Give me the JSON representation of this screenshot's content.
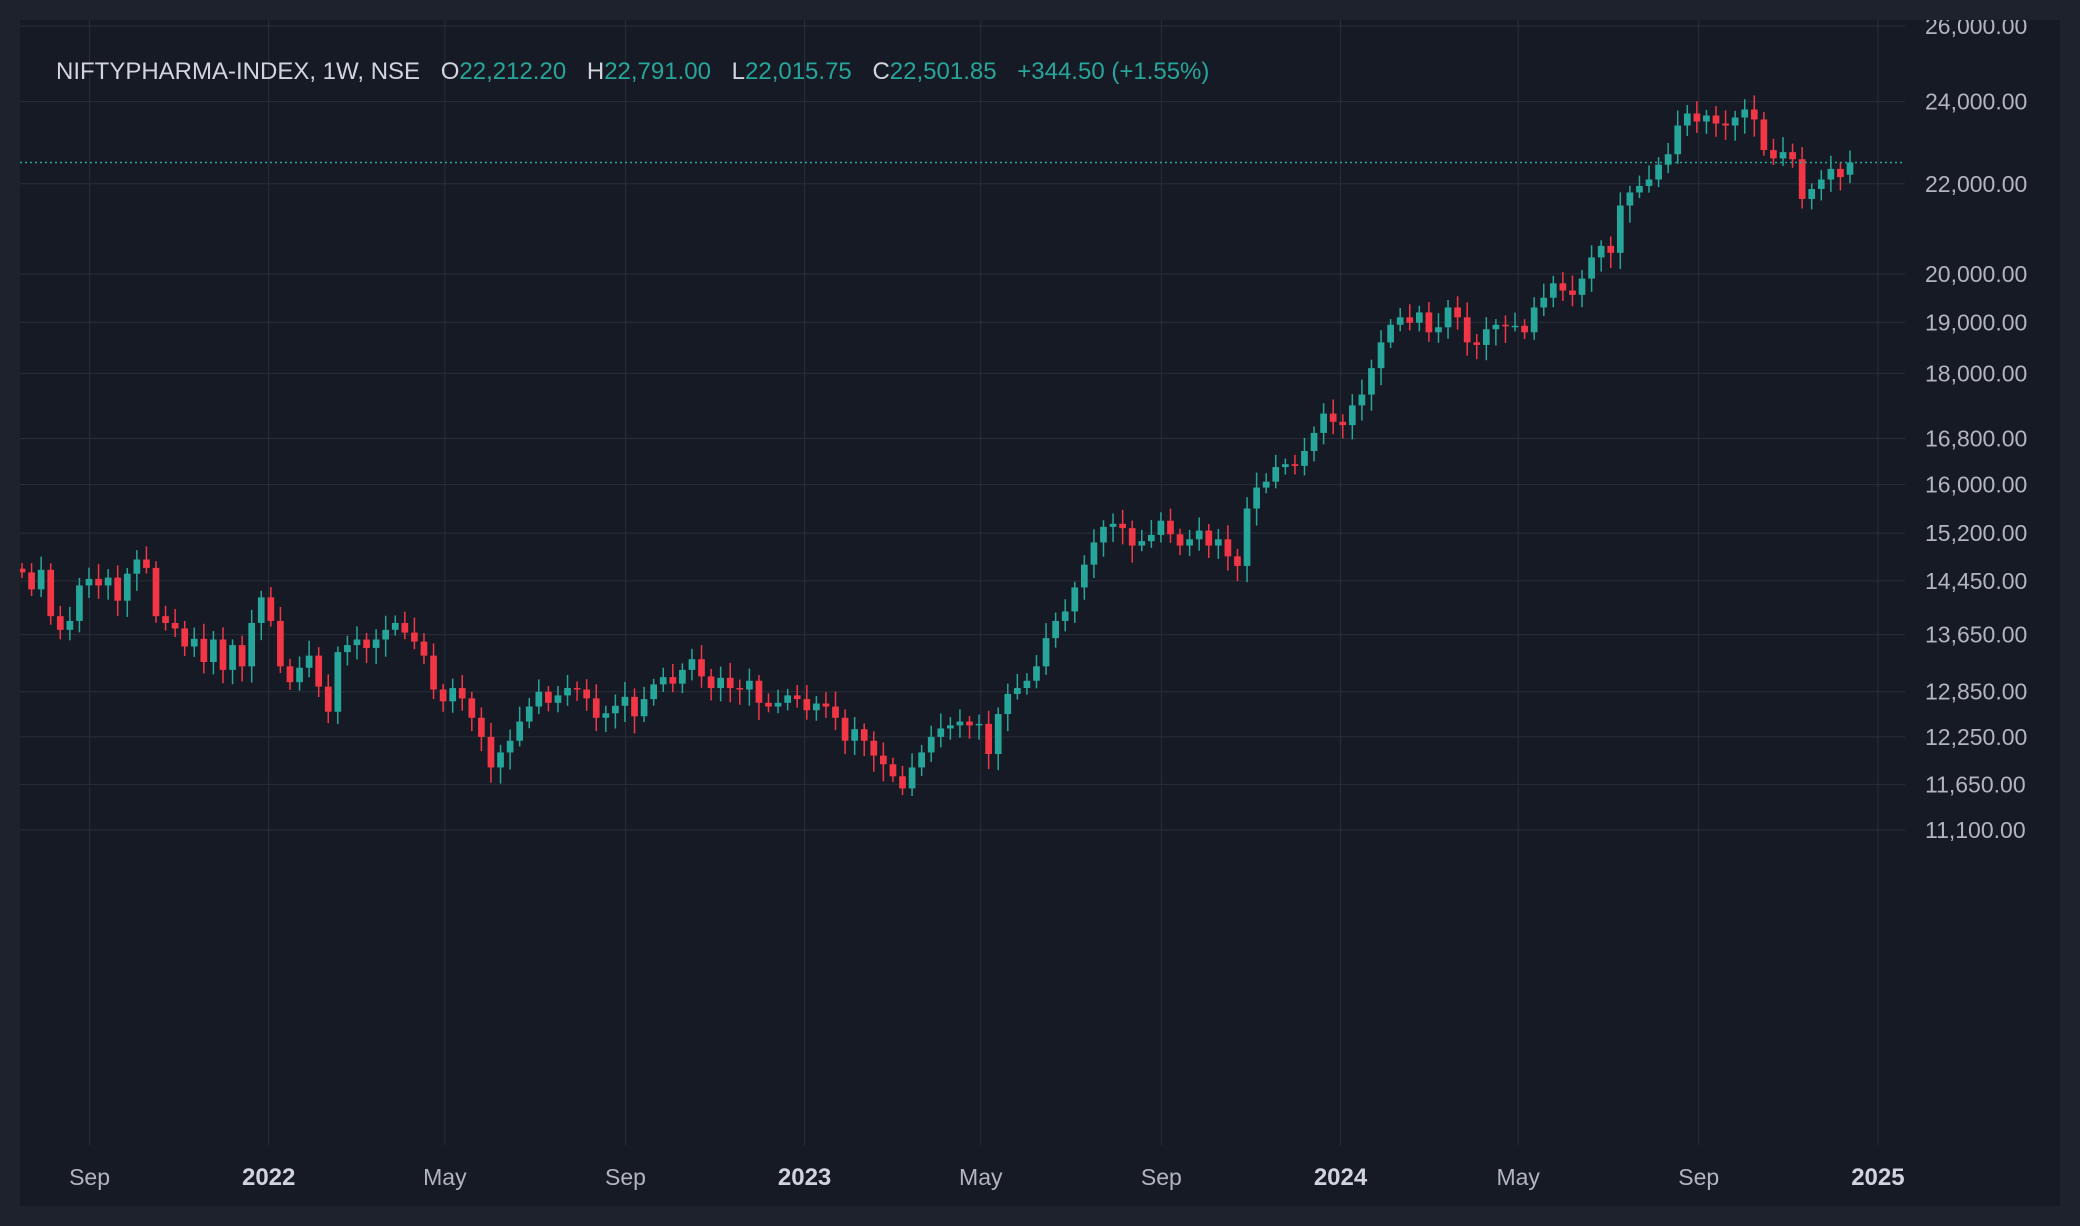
{
  "legend": {
    "symbol": "NIFTYPHARMA-INDEX, 1W, NSE",
    "open_label": "O",
    "open": "22,212.20",
    "high_label": "H",
    "high": "22,791.00",
    "low_label": "L",
    "low": "22,015.75",
    "close_label": "C",
    "close": "22,501.85",
    "change": "+344.50 (+1.55%)"
  },
  "colors": {
    "up": "#26a69a",
    "down": "#f23645",
    "background": "#161a25",
    "frame": "#1e222d",
    "grid": "#2a2e39",
    "text": "#b2b5be"
  },
  "chart_data": {
    "type": "candlestick",
    "timeframe": "1W",
    "yscale": "log",
    "ylim": [
      10700,
      26000
    ],
    "y_ticks": [
      "26,000.00",
      "24,000.00",
      "22,000.00",
      "20,000.00",
      "19,000.00",
      "18,000.00",
      "16,800.00",
      "16,000.00",
      "15,200.00",
      "14,450.00",
      "13,650.00",
      "12,850.00",
      "12,250.00",
      "11,650.00",
      "11,100.00"
    ],
    "x_ticks": [
      {
        "label": "Sep",
        "date": "2021-09-01",
        "bold": false
      },
      {
        "label": "2022",
        "date": "2022-01-01",
        "bold": true
      },
      {
        "label": "May",
        "date": "2022-05-01",
        "bold": false
      },
      {
        "label": "Sep",
        "date": "2022-09-01",
        "bold": false
      },
      {
        "label": "2023",
        "date": "2023-01-01",
        "bold": true
      },
      {
        "label": "May",
        "date": "2023-05-01",
        "bold": false
      },
      {
        "label": "Sep",
        "date": "2023-09-01",
        "bold": false
      },
      {
        "label": "2024",
        "date": "2024-01-01",
        "bold": true
      },
      {
        "label": "May",
        "date": "2024-05-01",
        "bold": false
      },
      {
        "label": "Sep",
        "date": "2024-09-01",
        "bold": false
      },
      {
        "label": "2025",
        "date": "2025-01-01",
        "bold": true
      }
    ],
    "current_price": 22501.85,
    "close_series": [
      14580,
      14320,
      14620,
      13920,
      13720,
      13850,
      14380,
      14480,
      14380,
      14500,
      14150,
      14560,
      14780,
      14650,
      13920,
      13820,
      13740,
      13480,
      13590,
      13260,
      13580,
      13150,
      13500,
      13200,
      13820,
      14200,
      13850,
      13200,
      12980,
      13180,
      13350,
      12920,
      12580,
      13400,
      13500,
      13580,
      13460,
      13580,
      13720,
      13820,
      13680,
      13550,
      13350,
      12880,
      12720,
      12900,
      12760,
      12500,
      12250,
      11860,
      12050,
      12200,
      12450,
      12650,
      12850,
      12700,
      12800,
      12900,
      12880,
      12760,
      12500,
      12560,
      12660,
      12780,
      12520,
      12750,
      12950,
      13050,
      12960,
      13150,
      13300,
      13060,
      12900,
      13040,
      12900,
      12880,
      13000,
      12700,
      12650,
      12700,
      12800,
      12750,
      12600,
      12690,
      12650,
      12500,
      12200,
      12350,
      12200,
      12010,
      11900,
      11750,
      11600,
      11860,
      12050,
      12250,
      12360,
      12400,
      12450,
      12400,
      12420,
      12030,
      12550,
      12820,
      12900,
      13000,
      13200,
      13600,
      13850,
      13990,
      14350,
      14700,
      15050,
      15300,
      15350,
      15280,
      15000,
      15070,
      15170,
      15400,
      15180,
      15000,
      15100,
      15240,
      15000,
      15100,
      14830,
      14680,
      15600,
      15950,
      16050,
      16300,
      16350,
      16320,
      16580,
      16900,
      17250,
      17100,
      17040,
      17400,
      17600,
      18100,
      18600,
      18950,
      19100,
      18990,
      19200,
      18800,
      18900,
      19300,
      19100,
      18600,
      18550,
      18860,
      18950,
      18930,
      18930,
      18800,
      19300,
      19500,
      19800,
      19650,
      19560,
      19900,
      20350,
      20600,
      20450,
      21500,
      21800,
      21950,
      22100,
      22450,
      22700,
      23400,
      23700,
      23500,
      23650,
      23450,
      23400,
      23600,
      23800,
      23550,
      22800,
      22600,
      22750,
      22580,
      21650,
      21880,
      22100,
      22350,
      22157,
      22502
    ]
  }
}
